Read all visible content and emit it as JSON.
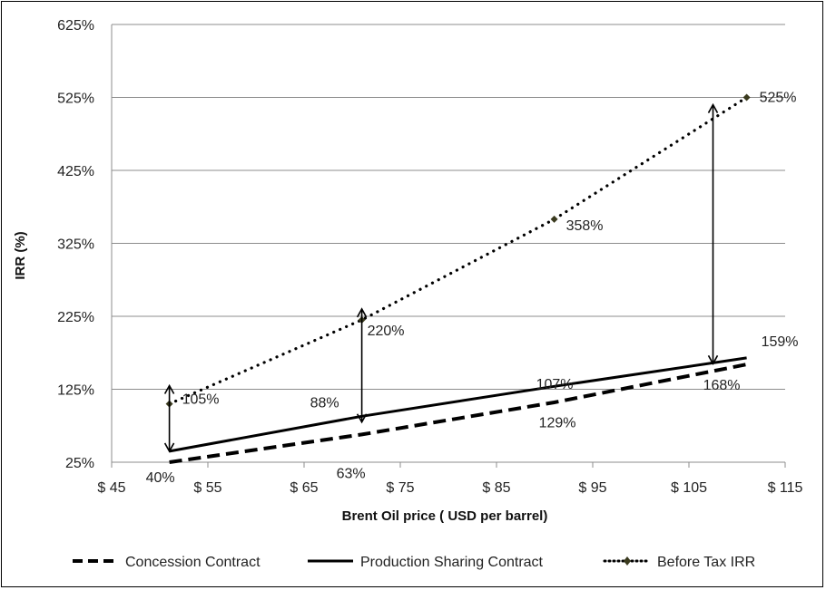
{
  "chart_data": {
    "type": "line",
    "title": "",
    "xlabel": "Brent Oil price ( USD per barrel)",
    "ylabel": "IRR (%)",
    "xlim": [
      45,
      115
    ],
    "ylim": [
      25,
      625
    ],
    "x_ticks": [
      45,
      55,
      65,
      75,
      85,
      95,
      105,
      115
    ],
    "x_tick_labels": [
      "$ 45",
      "$ 55",
      "$ 65",
      "$ 75",
      "$ 85",
      "$ 95",
      "$ 105",
      "$ 115"
    ],
    "y_ticks": [
      25,
      125,
      225,
      325,
      425,
      525,
      625
    ],
    "y_tick_labels": [
      "25%",
      "125%",
      "225%",
      "325%",
      "425%",
      "525%",
      "625%"
    ],
    "grid": "horizontal",
    "legend_position": "bottom",
    "series": [
      {
        "name": "Concession Contract",
        "style": "dashed",
        "color": "#000000",
        "x": [
          51,
          71,
          91,
          111
        ],
        "y": [
          25,
          63,
          107,
          159
        ]
      },
      {
        "name": "Production Sharing Contract",
        "style": "solid",
        "color": "#000000",
        "x": [
          51,
          71,
          91,
          111
        ],
        "y": [
          40,
          88,
          129,
          168
        ]
      },
      {
        "name": "Before Tax IRR",
        "style": "dotted-diamond",
        "color": "#000000",
        "x": [
          51,
          71,
          91,
          111
        ],
        "y": [
          105,
          220,
          358,
          525
        ]
      }
    ],
    "data_labels": [
      {
        "text": "40%",
        "x": 51,
        "y": 40
      },
      {
        "text": "88%",
        "x": 71,
        "y": 88
      },
      {
        "text": "129%",
        "x": 91,
        "y": 129
      },
      {
        "text": "168%",
        "x": 111,
        "y": 168
      },
      {
        "text": "63%",
        "x": 71,
        "y": 63
      },
      {
        "text": "107%",
        "x": 91,
        "y": 107
      },
      {
        "text": "159%",
        "x": 111,
        "y": 159
      },
      {
        "text": "105%",
        "x": 51,
        "y": 105
      },
      {
        "text": "220%",
        "x": 71,
        "y": 220
      },
      {
        "text": "358%",
        "x": 91,
        "y": 358
      },
      {
        "text": "525%",
        "x": 111,
        "y": 525
      }
    ],
    "difference_arrows": [
      {
        "x": 51,
        "y_low": 40,
        "y_high": 130
      },
      {
        "x": 71,
        "y_low": 80,
        "y_high": 235
      },
      {
        "x": 107.5,
        "y_low": 160,
        "y_high": 515
      }
    ]
  }
}
